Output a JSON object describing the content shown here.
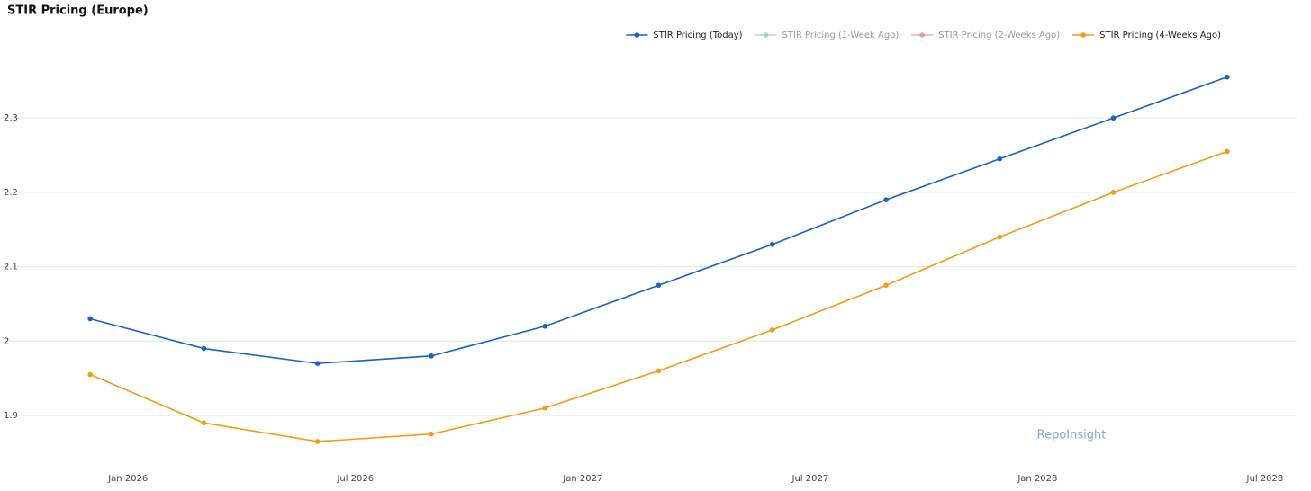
{
  "chart_data": {
    "type": "line",
    "title": "STIR Pricing (Europe)",
    "x": [
      "2025-12",
      "2026-03",
      "2026-06",
      "2026-09",
      "2026-12",
      "2027-03",
      "2027-06",
      "2027-09",
      "2027-12",
      "2028-03",
      "2028-06"
    ],
    "series": [
      {
        "name": "STIR Pricing (Today)",
        "color": "#1565c0",
        "visible": true,
        "values": [
          2.03,
          1.99,
          1.97,
          1.98,
          2.02,
          2.075,
          2.13,
          2.19,
          2.245,
          2.3,
          2.355
        ]
      },
      {
        "name": "STIR Pricing (1-Week Ago)",
        "color": "#81c784",
        "visible": false,
        "values": [
          null,
          null,
          null,
          null,
          null,
          null,
          null,
          null,
          null,
          null,
          null
        ]
      },
      {
        "name": "STIR Pricing (2-Weeks Ago)",
        "color": "#e57373",
        "visible": false,
        "values": [
          null,
          null,
          null,
          null,
          null,
          null,
          null,
          null,
          null,
          null,
          null
        ]
      },
      {
        "name": "STIR Pricing (4-Weeks Ago)",
        "color": "#f39c12",
        "visible": true,
        "values": [
          1.955,
          1.89,
          1.865,
          1.875,
          1.91,
          1.96,
          2.015,
          2.075,
          2.14,
          2.2,
          2.255
        ]
      }
    ],
    "xlim": [
      "2025-10",
      "2028-08"
    ],
    "xticks": [
      {
        "value": "2026-01",
        "label": "Jan 2026"
      },
      {
        "value": "2026-07",
        "label": "Jul 2026"
      },
      {
        "value": "2027-01",
        "label": "Jan 2027"
      },
      {
        "value": "2027-07",
        "label": "Jul 2027"
      },
      {
        "value": "2028-01",
        "label": "Jan 2028"
      },
      {
        "value": "2028-07",
        "label": "Jul 2028"
      }
    ],
    "ylim": [
      1.842,
      2.386
    ],
    "yticks": [
      1.9,
      2,
      2.1,
      2.2,
      2.3
    ],
    "grid": true,
    "legend": "top-right",
    "annotation": "RepoInsight"
  }
}
